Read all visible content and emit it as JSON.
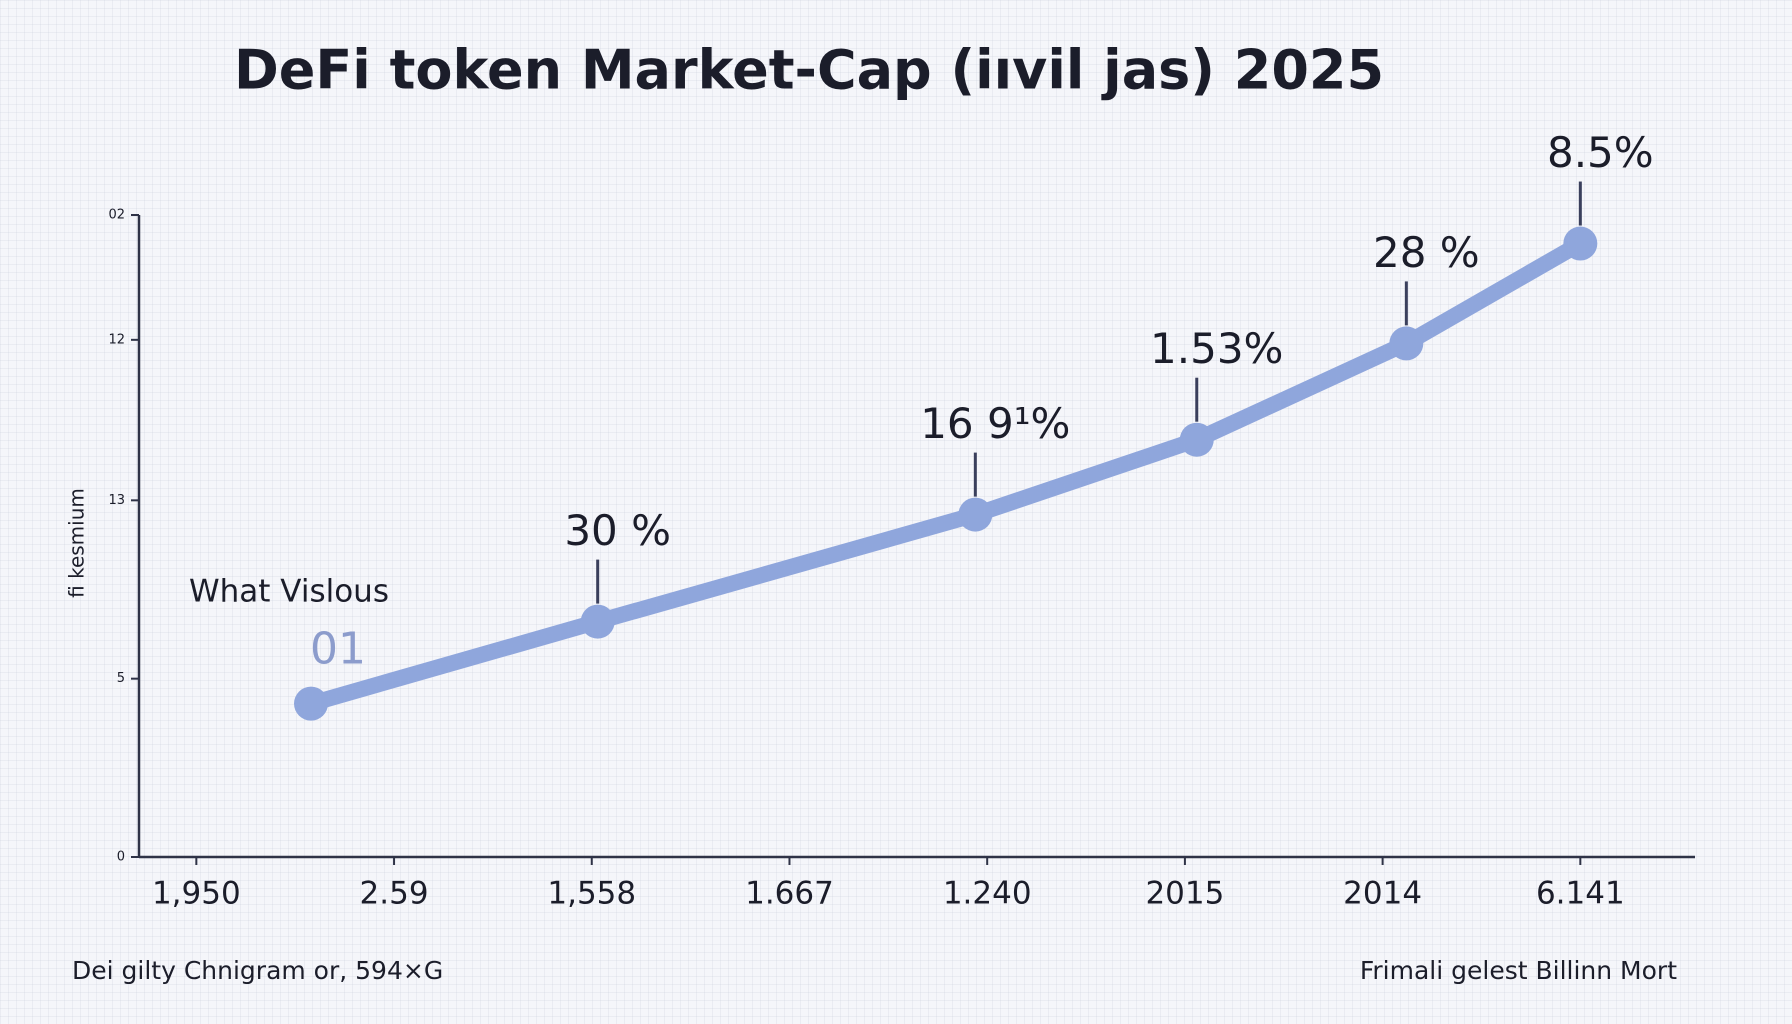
{
  "chart_data": {
    "type": "line",
    "title": "DeFi token Market-Cap (iıvil jas) 2025",
    "y_label": "fi kesmium",
    "annotation_left": "What Vislous",
    "footnote_left": "Dei gilty Chnigram or, 594×G",
    "footnote_right": "Frimali gelest Billinn Mort",
    "x": [
      0.58,
      2.03,
      3.94,
      5.06,
      6.12,
      7.0
    ],
    "series": [
      {
        "name": null,
        "color": "#8fa6dc",
        "values": [
          4.3,
          6.6,
          9.6,
          11.7,
          14.4,
          17.2
        ]
      }
    ],
    "annotations": [
      "01",
      "30 %",
      "16 9¹%",
      "1.53%",
      "28 %",
      "8.5%"
    ],
    "xlim": [
      -0.29,
      7.58
    ],
    "xticks": [
      {
        "value": 0,
        "label": "1,950"
      },
      {
        "value": 1,
        "label": "2.59"
      },
      {
        "value": 2,
        "label": "1,558"
      },
      {
        "value": 3,
        "label": "1.667"
      },
      {
        "value": 4,
        "label": "1.240"
      },
      {
        "value": 5,
        "label": "2015"
      },
      {
        "value": 6,
        "label": "2014"
      },
      {
        "value": 7,
        "label": "6.141"
      }
    ],
    "ylim": [
      0,
      18
    ],
    "yticks": [
      0,
      5,
      {
        "value": 10,
        "label": "13"
      },
      {
        "value": 14.5,
        "label": "12"
      },
      {
        "value": 18,
        "label": "02"
      }
    ]
  }
}
